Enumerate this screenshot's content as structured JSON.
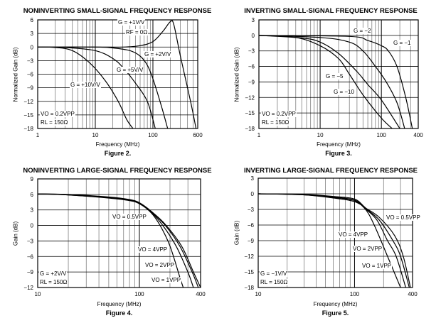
{
  "chart_data": [
    {
      "type": "line",
      "title": "NONINVERTING SMALL-SIGNAL FREQUENCY RESPONSE",
      "figure": "Figure 2.",
      "xlabel": "Frequency (MHz)",
      "ylabel": "Normalized Gain (dB)",
      "xscale": "log",
      "xlim": [
        1,
        600
      ],
      "ylim": [
        -18,
        6
      ],
      "xticks": [
        "1",
        "10",
        "100",
        "600"
      ],
      "yticks": [
        "6",
        "3",
        "0",
        "−3",
        "−6",
        "−9",
        "−12",
        "−15",
        "−18"
      ],
      "grid": true,
      "annotations": [
        "G = +1V/V",
        "RF = 0Ω",
        "G = +2V/V",
        "G = +5V/V",
        "G = +10V/V",
        "VO = 0.2VPP",
        "RL = 150Ω"
      ],
      "series": [
        {
          "name": "G = +1V/V",
          "x": [
            1,
            10,
            30,
            60,
            100,
            150,
            200,
            230,
            300,
            450,
            560
          ],
          "y": [
            0,
            0,
            0,
            0.3,
            1.2,
            3.5,
            5.6,
            5,
            -2,
            -12,
            -18
          ]
        },
        {
          "name": "G = +2V/V",
          "x": [
            1,
            10,
            20,
            40,
            60,
            80,
            100,
            140,
            180
          ],
          "y": [
            0,
            0,
            -0.2,
            -0.8,
            -2,
            -4,
            -7,
            -13,
            -18
          ]
        },
        {
          "name": "G = +5V/V",
          "x": [
            1,
            3,
            10,
            20,
            30,
            50,
            80,
            110
          ],
          "y": [
            0,
            -0.1,
            -0.8,
            -2.5,
            -4.5,
            -8,
            -12,
            -18
          ]
        },
        {
          "name": "G = +10V/V",
          "x": [
            1,
            2,
            4,
            8,
            15,
            25,
            35,
            45
          ],
          "y": [
            0,
            -0.1,
            -0.8,
            -3.5,
            -7.5,
            -12,
            -16,
            -18
          ]
        }
      ]
    },
    {
      "type": "line",
      "title": "INVERTING SMALL-SIGNAL FREQUENCY RESPONSE",
      "figure": "Figure 3.",
      "xlabel": "Frequency (MHz)",
      "ylabel": "Normalized Gain (dB)",
      "xscale": "log",
      "xlim": [
        1,
        400
      ],
      "ylim": [
        -18,
        3
      ],
      "xticks": [
        "1",
        "10",
        "100",
        "400"
      ],
      "yticks": [
        "3",
        "0",
        "−3",
        "−6",
        "−9",
        "−12",
        "−15",
        "−18"
      ],
      "grid": true,
      "annotations": [
        "G = −2",
        "G = −1",
        "G = −5",
        "G = −10",
        "VO = 0.2VPP",
        "RL = 150Ω"
      ],
      "series": [
        {
          "name": "G = −1",
          "x": [
            1,
            30,
            60,
            100,
            130,
            180,
            250,
            320
          ],
          "y": [
            0,
            -0.2,
            -1,
            -2,
            -3,
            -6,
            -12,
            -18
          ]
        },
        {
          "name": "G = −2",
          "x": [
            1,
            10,
            30,
            50,
            80,
            120,
            180,
            240
          ],
          "y": [
            0,
            -0.4,
            -1.3,
            -3,
            -6,
            -9,
            -13,
            -18
          ]
        },
        {
          "name": "G = −5",
          "x": [
            1,
            5,
            10,
            20,
            40,
            60,
            100,
            200
          ],
          "y": [
            0,
            -0.5,
            -1.3,
            -3.5,
            -7,
            -9.5,
            -12.5,
            -18
          ]
        },
        {
          "name": "G = −10",
          "x": [
            1,
            4,
            10,
            20,
            30,
            50,
            100,
            150
          ],
          "y": [
            0,
            -0.4,
            -2,
            -4.5,
            -7.5,
            -11.5,
            -16,
            -18
          ]
        }
      ]
    },
    {
      "type": "line",
      "title": "NONINVERTING LARGE-SIGNAL FREQUENCY RESPONSE",
      "figure": "Figure 4.",
      "xlabel": "Frequency (MHz)",
      "ylabel": "Gain (dB)",
      "xscale": "log",
      "xlim": [
        10,
        400
      ],
      "ylim": [
        -12,
        9
      ],
      "xticks": [
        "10",
        "100",
        "400"
      ],
      "yticks": [
        "9",
        "6",
        "3",
        "0",
        "−3",
        "−6",
        "−9",
        "−12"
      ],
      "grid": true,
      "annotations": [
        "VO = 0.5VPP",
        "VO = 4VPP",
        "VO = 2VPP",
        "VO = 1VPP",
        "G = +2V/V",
        "RL = 150Ω"
      ],
      "series": [
        {
          "name": "VO = 4VPP",
          "x": [
            10,
            20,
            50,
            80,
            100,
            130,
            160,
            200,
            250,
            270
          ],
          "y": [
            6.1,
            5.9,
            5.3,
            4.8,
            4.2,
            2.5,
            0,
            -4,
            -10,
            -12
          ]
        },
        {
          "name": "VO = 2VPP",
          "x": [
            10,
            20,
            50,
            80,
            100,
            130,
            170,
            230,
            300,
            340
          ],
          "y": [
            6.1,
            5.9,
            5.35,
            4.85,
            4.25,
            2.6,
            0,
            -4,
            -9,
            -12
          ]
        },
        {
          "name": "VO = 1VPP",
          "x": [
            10,
            20,
            50,
            80,
            100,
            130,
            180,
            250,
            330,
            380
          ],
          "y": [
            6.1,
            5.95,
            5.4,
            4.9,
            4.3,
            2.7,
            0,
            -4,
            -9,
            -12
          ]
        },
        {
          "name": "VO = 0.5VPP",
          "x": [
            10,
            20,
            50,
            80,
            100,
            130,
            180,
            260,
            340,
            400
          ],
          "y": [
            6.1,
            6,
            5.5,
            5,
            4.4,
            2.8,
            0.2,
            -4,
            -9,
            -12
          ]
        }
      ]
    },
    {
      "type": "line",
      "title": "INVERTING LARGE-SIGNAL FREQUENCY RESPONSE",
      "figure": "Figure 5.",
      "xlabel": "Frequency (MHz)",
      "ylabel": "Gain (dB)",
      "xscale": "log",
      "xlim": [
        10,
        400
      ],
      "ylim": [
        -18,
        3
      ],
      "xticks": [
        "10",
        "100",
        "400"
      ],
      "yticks": [
        "3",
        "0",
        "−3",
        "−6",
        "−9",
        "−12",
        "−15",
        "−18"
      ],
      "grid": true,
      "annotations": [
        "VO = 0.5VPP",
        "VO = 4VPP",
        "VO = 2VPP",
        "VO = 1VPP",
        "G = −1V/V",
        "RL = 150Ω"
      ],
      "series": [
        {
          "name": "VO = 4VPP",
          "x": [
            10,
            30,
            60,
            100,
            130,
            160,
            220,
            300
          ],
          "y": [
            0,
            -0.2,
            -0.8,
            -1.5,
            -3,
            -6,
            -12,
            -18
          ]
        },
        {
          "name": "VO = 2VPP",
          "x": [
            10,
            30,
            60,
            100,
            130,
            170,
            220,
            270,
            340
          ],
          "y": [
            0,
            -0.2,
            -0.7,
            -1.3,
            -2.9,
            -5,
            -9,
            -12,
            -18
          ]
        },
        {
          "name": "VO = 1VPP",
          "x": [
            10,
            30,
            60,
            100,
            130,
            180,
            250,
            300,
            370
          ],
          "y": [
            0,
            -0.15,
            -0.6,
            -1.2,
            -2.8,
            -5,
            -9,
            -12,
            -18
          ]
        },
        {
          "name": "VO = 0.5VPP",
          "x": [
            10,
            30,
            60,
            100,
            130,
            180,
            260,
            320,
            380
          ],
          "y": [
            0,
            -0.1,
            -0.5,
            -1,
            -2.7,
            -4.5,
            -8,
            -12,
            -18
          ]
        }
      ]
    }
  ]
}
